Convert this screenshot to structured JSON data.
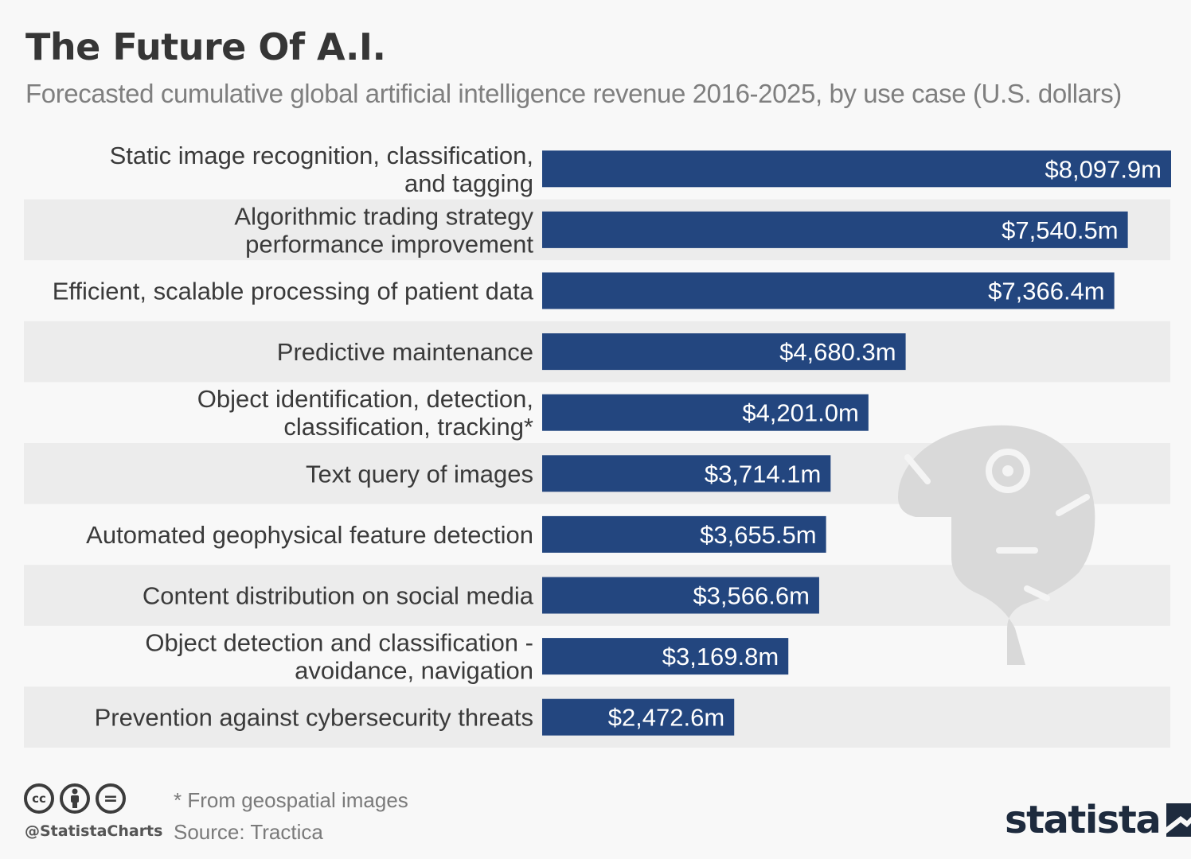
{
  "header": {
    "title": "The Future Of A.I.",
    "subtitle": "Forecasted cumulative global artificial intelligence revenue 2016-2025, by use case (U.S. dollars)"
  },
  "chart_data": {
    "type": "bar",
    "orientation": "horizontal",
    "title": "The Future Of A.I.",
    "subtitle": "Forecasted cumulative global artificial intelligence revenue 2016-2025, by use case (U.S. dollars)",
    "unit": "million U.S. dollars",
    "categories": [
      [
        "Static image recognition, classification,",
        "and tagging"
      ],
      [
        "Algorithmic trading strategy",
        "performance improvement"
      ],
      [
        "Efficient, scalable processing of patient data"
      ],
      [
        "Predictive maintenance"
      ],
      [
        "Object identification, detection,",
        "classification, tracking*"
      ],
      [
        "Text query of images"
      ],
      [
        "Automated geophysical feature detection"
      ],
      [
        "Content distribution on social media"
      ],
      [
        "Object detection and classification -",
        "avoidance, navigation"
      ],
      [
        "Prevention against cybersecurity threats"
      ]
    ],
    "values": [
      8097.9,
      7540.5,
      7366.4,
      4680.3,
      4201.0,
      3714.1,
      3655.5,
      3566.6,
      3169.8,
      2472.6
    ],
    "value_labels": [
      "$8,097.9m",
      "$7,540.5m",
      "$7,366.4m",
      "$4,680.3m",
      "$4,201.0m",
      "$3,714.1m",
      "$3,655.5m",
      "$3,566.6m",
      "$3,169.8m",
      "$2,472.6m"
    ],
    "xlim": [
      0,
      8097.9
    ],
    "grid": false,
    "legend": "none",
    "colors": {
      "bar": "#23467f",
      "bar_label": "#ffffff",
      "band": "#ececec",
      "category_label": "#3a3a3a"
    }
  },
  "footer": {
    "footnote": "* From geospatial images",
    "source": "Source: Tractica",
    "handle": "@StatistaCharts",
    "cc_icons": [
      {
        "name": "cc-icon",
        "glyph": "cc"
      },
      {
        "name": "by-icon",
        "glyph": "person"
      },
      {
        "name": "nd-icon",
        "glyph": "="
      }
    ],
    "brand": "statista",
    "brand_color": "#1e2b3e"
  }
}
